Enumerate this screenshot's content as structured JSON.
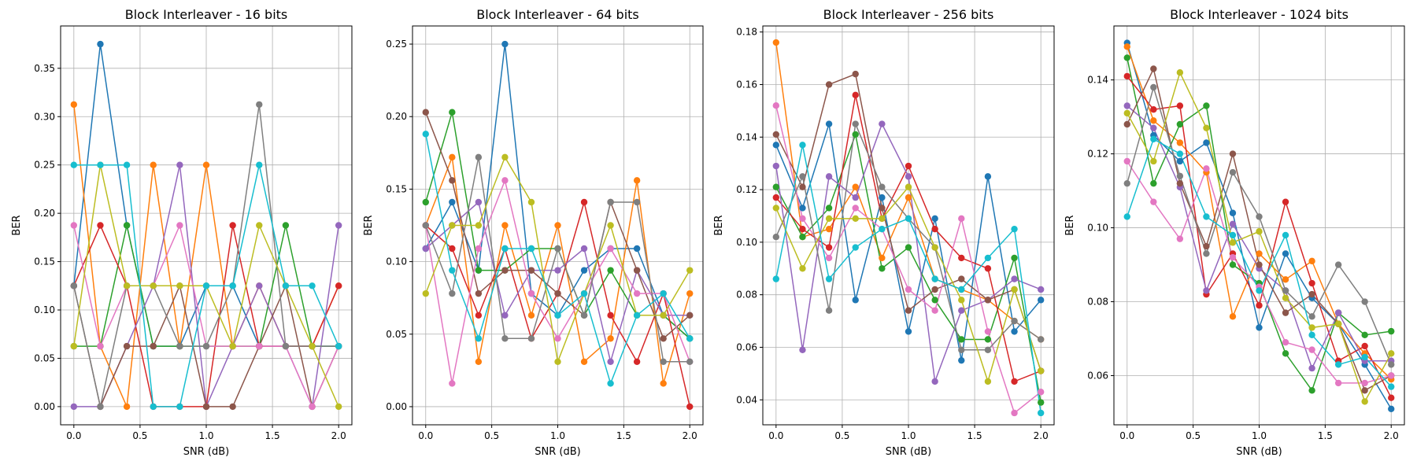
{
  "figure": {
    "palette": [
      "#1f77b4",
      "#ff7f0e",
      "#2ca02c",
      "#d62728",
      "#9467bd",
      "#8c564b",
      "#e377c2",
      "#7f7f7f",
      "#bcbd22",
      "#17becf"
    ]
  },
  "chart_data": [
    {
      "type": "line",
      "title": "Block Interleaver - 16 bits",
      "xlabel": "SNR (dB)",
      "ylabel": "BER",
      "x": [
        0.0,
        0.2,
        0.4,
        0.6,
        0.8,
        1.0,
        1.2,
        1.4,
        1.6,
        1.8,
        2.0
      ],
      "xlim": [
        -0.1,
        2.1
      ],
      "ylim": [
        -0.0188,
        0.3938
      ],
      "xticks": [
        0.0,
        0.5,
        1.0,
        1.5,
        2.0
      ],
      "xtick_labels": [
        "0.0",
        "0.5",
        "1.0",
        "1.5",
        "2.0"
      ],
      "yticks": [
        0.0,
        0.05,
        0.1,
        0.15,
        0.2,
        0.25,
        0.3,
        0.35
      ],
      "ytick_labels": [
        "0.00",
        "0.05",
        "0.10",
        "0.15",
        "0.20",
        "0.25",
        "0.30",
        "0.35"
      ],
      "grid": true,
      "marker": "circle",
      "series": [
        {
          "color": "#1f77b4",
          "values": [
            0.125,
            0.375,
            0.1875,
            0.0625,
            0.0625,
            0.125,
            0.125,
            0.0625,
            0.0625,
            0.0625,
            0.0625
          ]
        },
        {
          "color": "#ff7f0e",
          "values": [
            0.3125,
            0.0625,
            0.0,
            0.25,
            0.0625,
            0.25,
            0.0625,
            0.125,
            0.0625,
            0.0625,
            0.125
          ]
        },
        {
          "color": "#2ca02c",
          "values": [
            0.0625,
            0.0625,
            0.1875,
            0.0625,
            0.0625,
            0.0625,
            0.0625,
            0.0625,
            0.1875,
            0.0625,
            0.0625
          ]
        },
        {
          "color": "#d62728",
          "values": [
            0.125,
            0.1875,
            0.125,
            0.0,
            0.0,
            0.0,
            0.1875,
            0.0625,
            0.0625,
            0.0625,
            0.125
          ]
        },
        {
          "color": "#9467bd",
          "values": [
            0.0,
            0.0,
            0.0625,
            0.125,
            0.25,
            0.0,
            0.0625,
            0.125,
            0.0625,
            0.0,
            0.1875
          ]
        },
        {
          "color": "#8c564b",
          "values": [
            0.125,
            0.0,
            0.0625,
            0.0625,
            0.125,
            0.0,
            0.0,
            0.0625,
            0.125,
            0.0,
            0.0625
          ]
        },
        {
          "color": "#e377c2",
          "values": [
            0.1875,
            0.0625,
            0.125,
            0.125,
            0.1875,
            0.0625,
            0.0625,
            0.0625,
            0.0625,
            0.0,
            0.0625
          ]
        },
        {
          "color": "#7f7f7f",
          "values": [
            0.125,
            0.0,
            0.125,
            0.125,
            0.0625,
            0.0625,
            0.125,
            0.3125,
            0.0625,
            0.0625,
            0.0625
          ]
        },
        {
          "color": "#bcbd22",
          "values": [
            0.0625,
            0.25,
            0.125,
            0.125,
            0.125,
            0.125,
            0.0625,
            0.1875,
            0.125,
            0.0625,
            0.0
          ]
        },
        {
          "color": "#17becf",
          "values": [
            0.25,
            0.25,
            0.25,
            0.0,
            0.0,
            0.125,
            0.125,
            0.25,
            0.125,
            0.125,
            0.0625
          ]
        }
      ]
    },
    {
      "type": "line",
      "title": "Block Interleaver - 64 bits",
      "xlabel": "SNR (dB)",
      "ylabel": "BER",
      "x": [
        0.0,
        0.2,
        0.4,
        0.6,
        0.8,
        1.0,
        1.2,
        1.4,
        1.6,
        1.8,
        2.0
      ],
      "xlim": [
        -0.1,
        2.1
      ],
      "ylim": [
        -0.0125,
        0.2625
      ],
      "xticks": [
        0.0,
        0.5,
        1.0,
        1.5,
        2.0
      ],
      "xtick_labels": [
        "0.0",
        "0.5",
        "1.0",
        "1.5",
        "2.0"
      ],
      "yticks": [
        0.0,
        0.05,
        0.1,
        0.15,
        0.2,
        0.25
      ],
      "ytick_labels": [
        "0.00",
        "0.05",
        "0.10",
        "0.15",
        "0.20",
        "0.25"
      ],
      "grid": true,
      "marker": "circle",
      "series": [
        {
          "color": "#1f77b4",
          "values": [
            0.109,
            0.141,
            0.094,
            0.25,
            0.078,
            0.063,
            0.094,
            0.109,
            0.109,
            0.063,
            0.047
          ]
        },
        {
          "color": "#ff7f0e",
          "values": [
            0.125,
            0.172,
            0.031,
            0.125,
            0.063,
            0.125,
            0.031,
            0.047,
            0.156,
            0.016,
            0.078
          ]
        },
        {
          "color": "#2ca02c",
          "values": [
            0.141,
            0.203,
            0.094,
            0.094,
            0.109,
            0.109,
            0.063,
            0.094,
            0.063,
            0.063,
            0.047
          ]
        },
        {
          "color": "#d62728",
          "values": [
            0.125,
            0.109,
            0.063,
            0.109,
            0.047,
            0.078,
            0.141,
            0.063,
            0.031,
            0.078,
            0.0
          ]
        },
        {
          "color": "#9467bd",
          "values": [
            0.109,
            0.125,
            0.141,
            0.063,
            0.094,
            0.094,
            0.109,
            0.031,
            0.094,
            0.063,
            0.063
          ]
        },
        {
          "color": "#8c564b",
          "values": [
            0.203,
            0.156,
            0.078,
            0.094,
            0.094,
            0.078,
            0.063,
            0.141,
            0.094,
            0.047,
            0.063
          ]
        },
        {
          "color": "#e377c2",
          "values": [
            0.125,
            0.016,
            0.109,
            0.156,
            0.078,
            0.047,
            0.078,
            0.109,
            0.078,
            0.078,
            0.031
          ]
        },
        {
          "color": "#7f7f7f",
          "values": [
            0.125,
            0.078,
            0.172,
            0.047,
            0.047,
            0.109,
            0.063,
            0.141,
            0.141,
            0.031,
            0.031
          ]
        },
        {
          "color": "#bcbd22",
          "values": [
            0.078,
            0.125,
            0.125,
            0.172,
            0.141,
            0.031,
            0.078,
            0.125,
            0.063,
            0.063,
            0.094
          ]
        },
        {
          "color": "#17becf",
          "values": [
            0.188,
            0.094,
            0.047,
            0.109,
            0.109,
            0.063,
            0.078,
            0.016,
            0.063,
            0.078,
            0.047
          ]
        }
      ]
    },
    {
      "type": "line",
      "title": "Block Interleaver - 256 bits",
      "xlabel": "SNR (dB)",
      "ylabel": "BER",
      "x": [
        0.0,
        0.2,
        0.4,
        0.6,
        0.8,
        1.0,
        1.2,
        1.4,
        1.6,
        1.8,
        2.0
      ],
      "xlim": [
        -0.1,
        2.1
      ],
      "ylim": [
        0.0305,
        0.1823
      ],
      "xticks": [
        0.0,
        0.5,
        1.0,
        1.5,
        2.0
      ],
      "xtick_labels": [
        "0.0",
        "0.5",
        "1.0",
        "1.5",
        "2.0"
      ],
      "yticks": [
        0.04,
        0.06,
        0.08,
        0.1,
        0.12,
        0.14,
        0.16,
        0.18
      ],
      "ytick_labels": [
        "0.04",
        "0.06",
        "0.08",
        "0.10",
        "0.12",
        "0.14",
        "0.16",
        "0.18"
      ],
      "grid": true,
      "marker": "circle",
      "series": [
        {
          "color": "#1f77b4",
          "values": [
            0.137,
            0.113,
            0.145,
            0.078,
            0.117,
            0.066,
            0.109,
            0.055,
            0.125,
            0.066,
            0.078
          ]
        },
        {
          "color": "#ff7f0e",
          "values": [
            0.176,
            0.102,
            0.105,
            0.121,
            0.094,
            0.117,
            0.086,
            0.082,
            0.078,
            0.07,
            0.063
          ]
        },
        {
          "color": "#2ca02c",
          "values": [
            0.121,
            0.102,
            0.113,
            0.141,
            0.09,
            0.098,
            0.078,
            0.063,
            0.063,
            0.094,
            0.039
          ]
        },
        {
          "color": "#d62728",
          "values": [
            0.117,
            0.105,
            0.098,
            0.156,
            0.109,
            0.129,
            0.105,
            0.094,
            0.09,
            0.047,
            0.051
          ]
        },
        {
          "color": "#9467bd",
          "values": [
            0.129,
            0.059,
            0.125,
            0.117,
            0.145,
            0.125,
            0.047,
            0.074,
            0.078,
            0.086,
            0.082
          ]
        },
        {
          "color": "#8c564b",
          "values": [
            0.141,
            0.121,
            0.16,
            0.164,
            0.113,
            0.074,
            0.082,
            0.086,
            0.078,
            0.082,
            0.051
          ]
        },
        {
          "color": "#e377c2",
          "values": [
            0.152,
            0.109,
            0.094,
            0.113,
            0.105,
            0.082,
            0.074,
            0.109,
            0.066,
            0.035,
            0.043
          ]
        },
        {
          "color": "#7f7f7f",
          "values": [
            0.102,
            0.125,
            0.074,
            0.145,
            0.121,
            0.109,
            0.098,
            0.059,
            0.059,
            0.07,
            0.063
          ]
        },
        {
          "color": "#bcbd22",
          "values": [
            0.113,
            0.09,
            0.109,
            0.109,
            0.109,
            0.121,
            0.098,
            0.078,
            0.047,
            0.082,
            0.051
          ]
        },
        {
          "color": "#17becf",
          "values": [
            0.086,
            0.137,
            0.086,
            0.098,
            0.105,
            0.109,
            0.086,
            0.082,
            0.094,
            0.105,
            0.035
          ]
        }
      ]
    },
    {
      "type": "line",
      "title": "Block Interleaver - 1024 bits",
      "xlabel": "SNR (dB)",
      "ylabel": "BER",
      "x": [
        0.0,
        0.2,
        0.4,
        0.6,
        0.8,
        1.0,
        1.2,
        1.4,
        1.6,
        1.8,
        2.0
      ],
      "xlim": [
        -0.1,
        2.1
      ],
      "ylim": [
        0.0467,
        0.1546
      ],
      "xticks": [
        0.0,
        0.5,
        1.0,
        1.5,
        2.0
      ],
      "xtick_labels": [
        "0.0",
        "0.5",
        "1.0",
        "1.5",
        "2.0"
      ],
      "yticks": [
        0.06,
        0.08,
        0.1,
        0.12,
        0.14
      ],
      "ytick_labels": [
        "0.06",
        "0.08",
        "0.10",
        "0.12",
        "0.14"
      ],
      "grid": true,
      "marker": "circle",
      "series": [
        {
          "color": "#1f77b4",
          "values": [
            0.15,
            0.125,
            0.118,
            0.123,
            0.104,
            0.073,
            0.093,
            0.081,
            0.074,
            0.063,
            0.051
          ]
        },
        {
          "color": "#ff7f0e",
          "values": [
            0.149,
            0.129,
            0.123,
            0.115,
            0.076,
            0.093,
            0.086,
            0.091,
            0.074,
            0.066,
            0.059
          ]
        },
        {
          "color": "#2ca02c",
          "values": [
            0.146,
            0.112,
            0.128,
            0.133,
            0.09,
            0.085,
            0.066,
            0.056,
            0.077,
            0.071,
            0.072
          ]
        },
        {
          "color": "#d62728",
          "values": [
            0.141,
            0.132,
            0.133,
            0.082,
            0.093,
            0.079,
            0.107,
            0.085,
            0.064,
            0.068,
            0.054
          ]
        },
        {
          "color": "#9467bd",
          "values": [
            0.133,
            0.127,
            0.111,
            0.083,
            0.101,
            0.089,
            0.083,
            0.062,
            0.077,
            0.064,
            0.064
          ]
        },
        {
          "color": "#8c564b",
          "values": [
            0.128,
            0.143,
            0.112,
            0.095,
            0.12,
            0.09,
            0.077,
            0.082,
            0.074,
            0.056,
            0.06
          ]
        },
        {
          "color": "#e377c2",
          "values": [
            0.118,
            0.107,
            0.097,
            0.116,
            0.092,
            0.084,
            0.069,
            0.067,
            0.058,
            0.058,
            0.06
          ]
        },
        {
          "color": "#7f7f7f",
          "values": [
            0.112,
            0.138,
            0.114,
            0.093,
            0.115,
            0.103,
            0.083,
            0.076,
            0.09,
            0.08,
            0.063
          ]
        },
        {
          "color": "#bcbd22",
          "values": [
            0.131,
            0.118,
            0.142,
            0.127,
            0.096,
            0.099,
            0.081,
            0.073,
            0.074,
            0.053,
            0.066
          ]
        },
        {
          "color": "#17becf",
          "values": [
            0.103,
            0.124,
            0.12,
            0.103,
            0.098,
            0.083,
            0.098,
            0.071,
            0.063,
            0.065,
            0.057
          ]
        }
      ]
    }
  ]
}
